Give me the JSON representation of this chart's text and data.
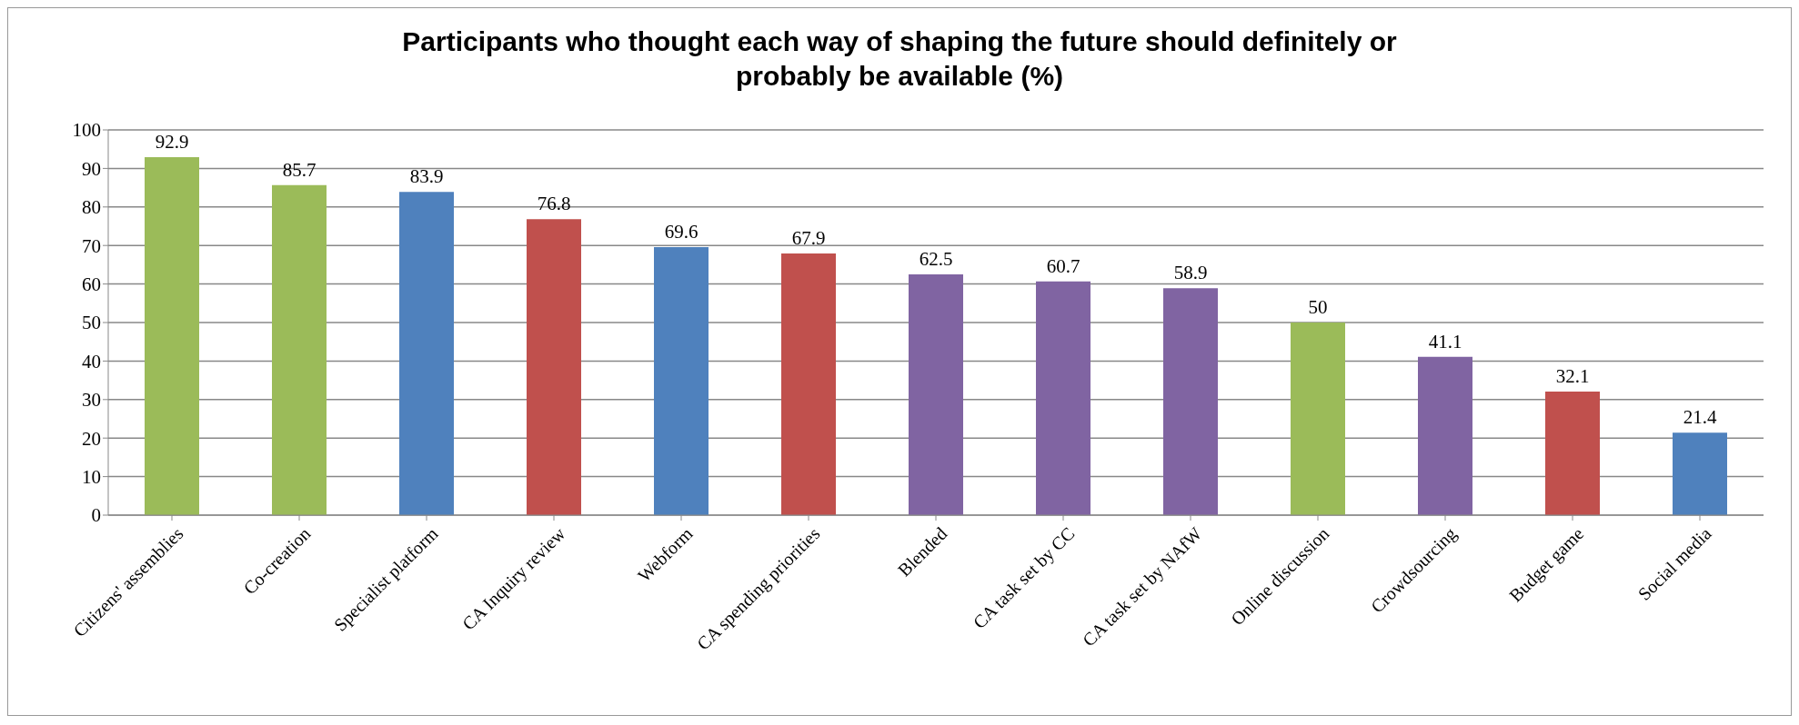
{
  "chart_data": {
    "type": "bar",
    "title": "Participants who thought each way of shaping the future should definitely or probably be available (%)",
    "categories": [
      "Citizens' assemblies",
      "Co-creation",
      "Specialist platform",
      "CA Inquiry review",
      "Webform",
      "CA spending priorities",
      "Blended",
      "CA task set by CC",
      "CA task set by NAfW",
      "Online discussion",
      "Crowdsourcing",
      "Budget game",
      "Social media"
    ],
    "values": [
      92.9,
      85.7,
      83.9,
      76.8,
      69.6,
      67.9,
      62.5,
      60.7,
      58.9,
      50,
      41.1,
      32.1,
      21.4
    ],
    "colors": [
      "#9bbb59",
      "#9bbb59",
      "#4f81bd",
      "#c0504d",
      "#4f81bd",
      "#c0504d",
      "#8064a2",
      "#8064a2",
      "#8064a2",
      "#9bbb59",
      "#8064a2",
      "#c0504d",
      "#4f81bd"
    ],
    "ylim": [
      0,
      100
    ],
    "yticks": [
      0,
      10,
      20,
      30,
      40,
      50,
      60,
      70,
      80,
      90,
      100
    ],
    "grid": "y",
    "data_labels": true,
    "legend": false
  }
}
